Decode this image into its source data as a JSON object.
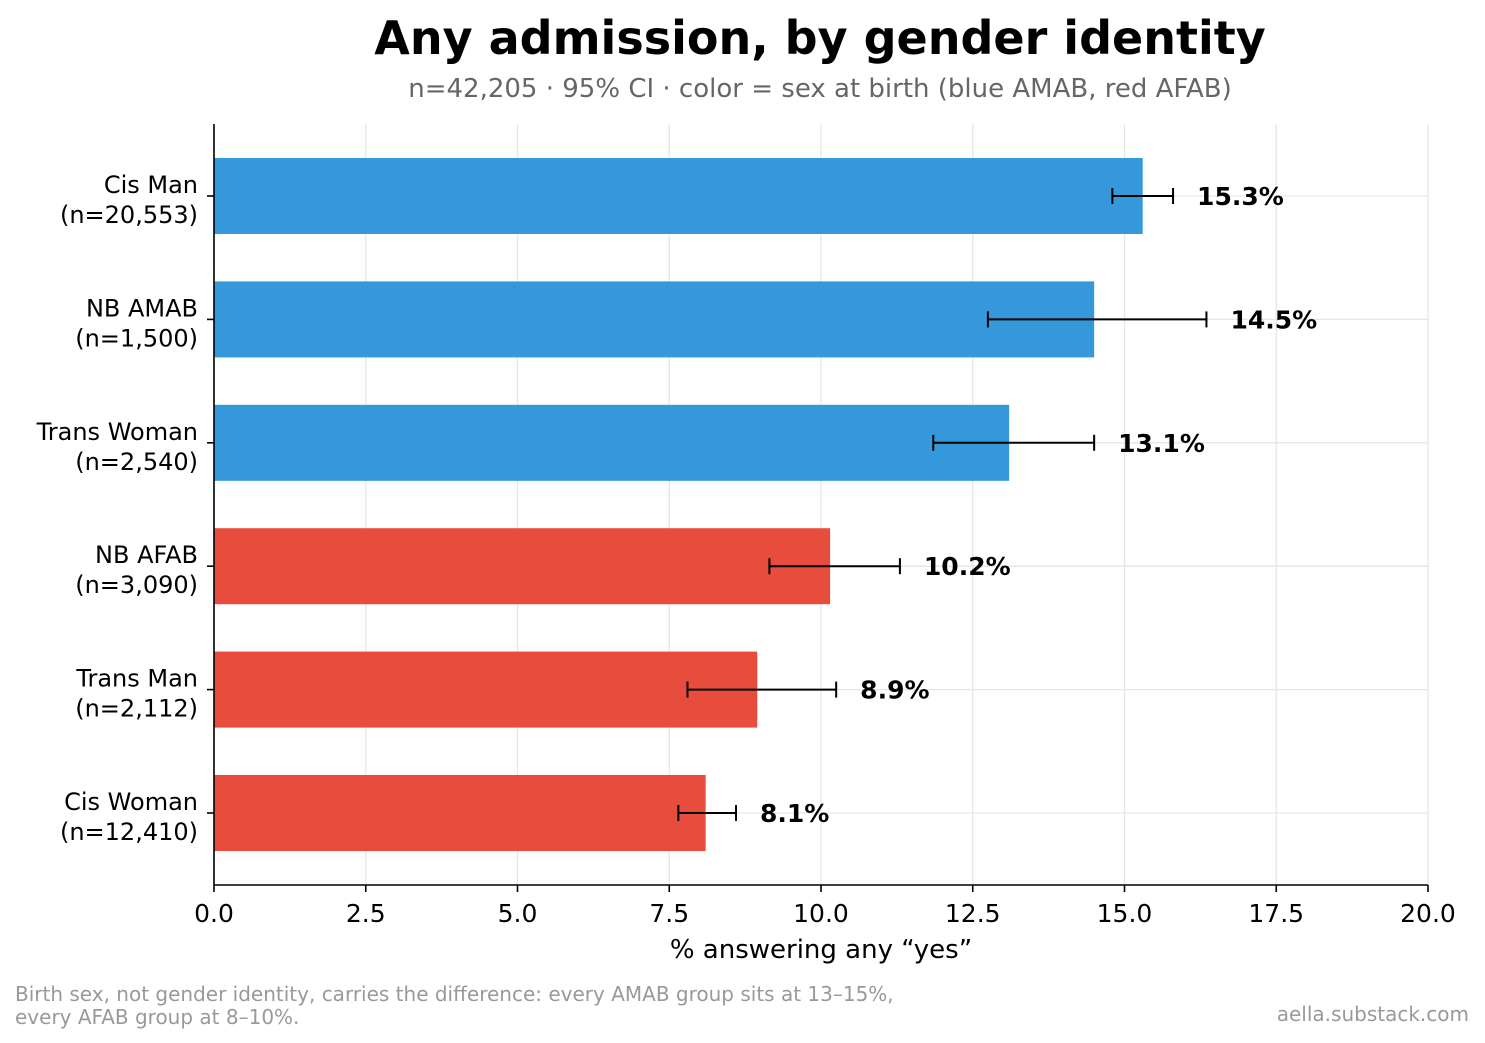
{
  "chart_data": {
    "type": "bar",
    "orientation": "horizontal",
    "title": "Any admission, by gender identity",
    "subtitle": "n=42,205 · 95% CI · color = sex at birth (blue AMAB, red AFAB)",
    "xlabel": "% answering any “yes”",
    "ylabel": "",
    "xlim": [
      0,
      20
    ],
    "xticks": [
      "0.0",
      "2.5",
      "5.0",
      "7.5",
      "10.0",
      "12.5",
      "15.0",
      "17.5",
      "20.0"
    ],
    "grid": true,
    "categories": [
      {
        "name": "Cis Man",
        "n": "(n=20,553)",
        "value": 15.3,
        "ci": [
          14.8,
          15.8
        ],
        "label": "15.3%",
        "color": "#3498db"
      },
      {
        "name": "NB AMAB",
        "n": "(n=1,500)",
        "value": 14.5,
        "ci": [
          12.75,
          16.35
        ],
        "label": "14.5%",
        "color": "#3498db"
      },
      {
        "name": "Trans Woman",
        "n": "(n=2,540)",
        "value": 13.1,
        "ci": [
          11.85,
          14.5
        ],
        "label": "13.1%",
        "color": "#3498db"
      },
      {
        "name": "NB AFAB",
        "n": "(n=3,090)",
        "value": 10.15,
        "ci": [
          9.15,
          11.3
        ],
        "label": "10.2%",
        "color": "#e74c3c"
      },
      {
        "name": "Trans Man",
        "n": "(n=2,112)",
        "value": 8.95,
        "ci": [
          7.8,
          10.25
        ],
        "label": "8.9%",
        "color": "#e74c3c"
      },
      {
        "name": "Cis Woman",
        "n": "(n=12,410)",
        "value": 8.1,
        "ci": [
          7.65,
          8.6
        ],
        "label": "8.1%",
        "color": "#e74c3c"
      }
    ],
    "footnote_lines": [
      "Birth sex, not gender identity, carries the difference: every AMAB group sits at 13–15%,",
      "every AFAB group at 8–10%."
    ],
    "credit": "aella.substack.com"
  }
}
